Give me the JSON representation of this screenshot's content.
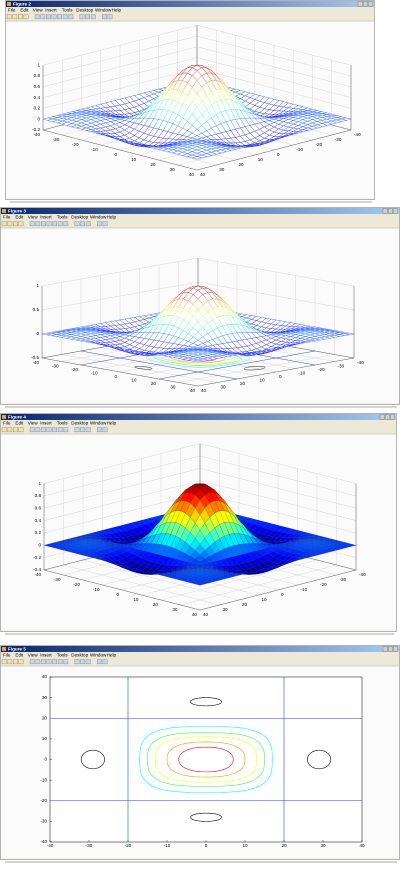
{
  "windows": [
    {
      "title": "Figure 2",
      "menu": [
        "File",
        "Edit",
        "View",
        "Insert",
        "Tools",
        "Desktop",
        "Window",
        "Help"
      ],
      "plot": {
        "zticks": [
          -0.2,
          0,
          0.2,
          0.4,
          0.6,
          0.8,
          1
        ],
        "xticks": [
          -40,
          -30,
          -20,
          -10,
          0,
          10,
          20,
          30,
          40
        ],
        "yticks": [
          -40,
          -30,
          -20,
          -10,
          0,
          10,
          20,
          30,
          40
        ]
      }
    },
    {
      "title": "Figure 3",
      "menu": [
        "File",
        "Edit",
        "View",
        "Insert",
        "Tools",
        "Desktop",
        "Window",
        "Help"
      ],
      "plot": {
        "zticks": [
          -0.5,
          0,
          0.5,
          1
        ],
        "xticks": [
          -40,
          -30,
          -20,
          -10,
          0,
          10,
          20,
          30,
          40
        ],
        "yticks": [
          -40,
          -30,
          -20,
          -10,
          0,
          10,
          20,
          30,
          40
        ]
      }
    },
    {
      "title": "Figure 4",
      "menu": [
        "File",
        "Edit",
        "View",
        "Insert",
        "Tools",
        "Desktop",
        "Window",
        "Help"
      ],
      "plot": {
        "zticks": [
          -0.4,
          -0.2,
          0,
          0.2,
          0.4,
          0.6,
          0.8,
          1
        ],
        "xticks": [
          -40,
          -30,
          -20,
          -10,
          0,
          10,
          20,
          30,
          40
        ],
        "yticks": [
          -40,
          -30,
          -20,
          -10,
          0,
          10,
          20,
          30,
          40
        ]
      }
    },
    {
      "title": "Figure 5",
      "menu": [
        "File",
        "Edit",
        "View",
        "Insert",
        "Tools",
        "Desktop",
        "Window",
        "Help"
      ],
      "plot": {
        "xticks": [
          -40,
          -30,
          -20,
          -10,
          0,
          10,
          20,
          30,
          40
        ],
        "yticks": [
          -40,
          -30,
          -20,
          -10,
          0,
          10,
          20,
          30,
          40
        ]
      }
    }
  ]
}
